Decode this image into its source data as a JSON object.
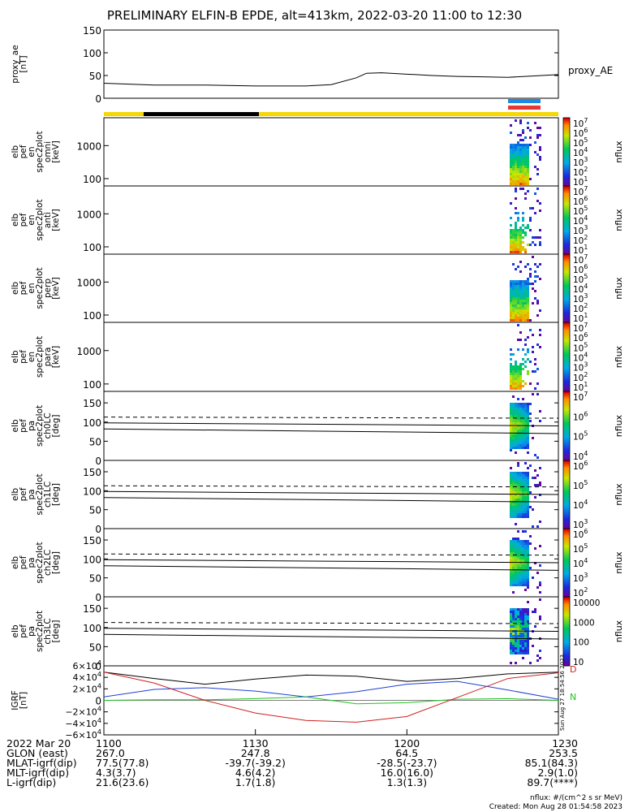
{
  "title": "PRELIMINARY ELFIN-B EPDE, alt=413km, 2022-03-20 11:00 to 12:30",
  "colors": {
    "sci_zone": "#f5d800",
    "night_bar": "#000000",
    "marker_blue": "#1e88e5",
    "marker_red": "#e53935",
    "grf_black": "#000000",
    "grf_blue": "#1f3fd8",
    "grf_green": "#22c322",
    "grf_red": "#d01f1f"
  },
  "side_notes": {
    "stamp": "Sun Aug 27 18:54:56 2023",
    "n_marker": "N",
    "d_marker": "D"
  },
  "chart_data": [
    {
      "type": "line",
      "panel": "proxy_ae",
      "ylabel": "proxy_ae [nT]",
      "legend": "proxy_AE",
      "ylim": [
        0,
        150
      ],
      "yticks": [
        "150",
        "100",
        "50",
        "0"
      ],
      "x_minutes": [
        0,
        10,
        20,
        30,
        40,
        45,
        50,
        52,
        55,
        60,
        65,
        70,
        75,
        80,
        90
      ],
      "values": [
        33,
        29,
        29,
        27,
        27,
        30,
        45,
        55,
        56,
        53,
        50,
        48,
        47,
        46,
        52
      ]
    },
    {
      "type": "heatmap",
      "panel": "en_omni",
      "ylabel": "elb pef en spec2plot omni [keV]",
      "yticks": [
        "1000",
        "100"
      ],
      "colorbar": {
        "label": "nflux",
        "ticks": [
          "10^7",
          "10^6",
          "10^5",
          "10^4",
          "10^3",
          "10^2",
          "10^1"
        ]
      }
    },
    {
      "type": "heatmap",
      "panel": "en_anti",
      "ylabel": "elb pef en spec2plot anti [keV]",
      "yticks": [
        "1000",
        "100"
      ],
      "colorbar": {
        "label": "nflux",
        "ticks": [
          "10^7",
          "10^6",
          "10^5",
          "10^4",
          "10^3",
          "10^2",
          "10^1"
        ]
      }
    },
    {
      "type": "heatmap",
      "panel": "en_perp",
      "ylabel": "elb pef en spec2plot perp [keV]",
      "yticks": [
        "1000",
        "100"
      ],
      "colorbar": {
        "label": "nflux",
        "ticks": [
          "10^7",
          "10^6",
          "10^5",
          "10^4",
          "10^3",
          "10^2",
          "10^1"
        ]
      }
    },
    {
      "type": "heatmap",
      "panel": "en_para",
      "ylabel": "elb pef en spec2plot para [keV]",
      "yticks": [
        "1000",
        "100"
      ],
      "colorbar": {
        "label": "nflux",
        "ticks": [
          "10^7",
          "10^6",
          "10^5",
          "10^4",
          "10^3",
          "10^2",
          "10^1"
        ]
      }
    },
    {
      "type": "heatmap",
      "panel": "pa_ch0",
      "ylabel": "elb pef pa spec2plot ch0LC [deg]",
      "ylim": [
        0,
        180
      ],
      "yticks": [
        "150",
        "100",
        "50",
        "0"
      ],
      "colorbar": {
        "label": "nflux",
        "ticks": [
          "10^7",
          "10^6",
          "10^5",
          "10^4"
        ]
      }
    },
    {
      "type": "heatmap",
      "panel": "pa_ch1",
      "ylabel": "elb pef pa spec2plot ch1LC [deg]",
      "ylim": [
        0,
        180
      ],
      "yticks": [
        "150",
        "100",
        "50",
        "0"
      ],
      "colorbar": {
        "label": "nflux",
        "ticks": [
          "10^6",
          "10^5",
          "10^4",
          "10^3"
        ]
      }
    },
    {
      "type": "heatmap",
      "panel": "pa_ch2",
      "ylabel": "elb pef pa spec2plot ch2LC [deg]",
      "ylim": [
        0,
        180
      ],
      "yticks": [
        "150",
        "100",
        "50",
        "0"
      ],
      "colorbar": {
        "label": "nflux",
        "ticks": [
          "10^6",
          "10^5",
          "10^4",
          "10^3",
          "10^2"
        ]
      }
    },
    {
      "type": "heatmap",
      "panel": "pa_ch3",
      "ylabel": "elb pef pa spec2plot ch3LC [deg]",
      "ylim": [
        0,
        180
      ],
      "yticks": [
        "150",
        "100",
        "50",
        "0"
      ],
      "colorbar": {
        "label": "nflux",
        "ticks": [
          "10000",
          "1000",
          "100",
          "10"
        ]
      }
    },
    {
      "type": "line",
      "panel": "igrf",
      "ylabel": "IGRF [nT]",
      "ylim": [
        -60000,
        60000
      ],
      "yticks": [
        "6×10^4",
        "4×10^4",
        "2×10^4",
        "0",
        "−2×10^4",
        "−4×10^4",
        "−6×10^4"
      ],
      "x_minutes": [
        0,
        10,
        20,
        30,
        40,
        50,
        60,
        70,
        80,
        90
      ],
      "series": [
        {
          "color": "black",
          "values": [
            49000,
            38000,
            28000,
            37000,
            44000,
            42000,
            33000,
            38000,
            46000,
            49000
          ]
        },
        {
          "color": "blue",
          "values": [
            6000,
            19000,
            22000,
            16000,
            6000,
            15000,
            28000,
            33000,
            18000,
            2000
          ]
        },
        {
          "color": "green",
          "values": [
            0,
            1000,
            1000,
            3000,
            6000,
            -6000,
            -4000,
            2000,
            3000,
            0
          ]
        },
        {
          "color": "red",
          "values": [
            49000,
            30000,
            0,
            -22000,
            -35000,
            -38000,
            -28000,
            5000,
            38000,
            48000
          ]
        }
      ]
    }
  ],
  "xaxis": {
    "ticks": [
      "1100",
      "1130",
      "1200",
      "1230"
    ],
    "rows": [
      {
        "label": "2022 Mar 20",
        "vals": [
          "1100",
          "1130",
          "1200",
          "1230"
        ]
      },
      {
        "label": "GLON (east)",
        "vals": [
          "267.0",
          "247.8",
          "64.5",
          "253.5"
        ]
      },
      {
        "label": "MLAT-igrf(dip)",
        "vals": [
          "77.5(77.8)",
          "-39.7(-39.2)",
          "-28.5(-23.7)",
          "85.1(84.3)"
        ]
      },
      {
        "label": "MLT-igrf(dip)",
        "vals": [
          "4.3(3.7)",
          "4.6(4.2)",
          "16.0(16.0)",
          "2.9(1.0)"
        ]
      },
      {
        "label": "L-igrf(dip)",
        "vals": [
          "21.6(23.6)",
          "1.7(1.8)",
          "1.3(1.3)",
          "89.7(****)"
        ]
      }
    ]
  },
  "footer": {
    "units": "nflux: #/(cm^2 s sr MeV)",
    "created": "Created: Mon Aug 28 01:54:58 2023"
  }
}
